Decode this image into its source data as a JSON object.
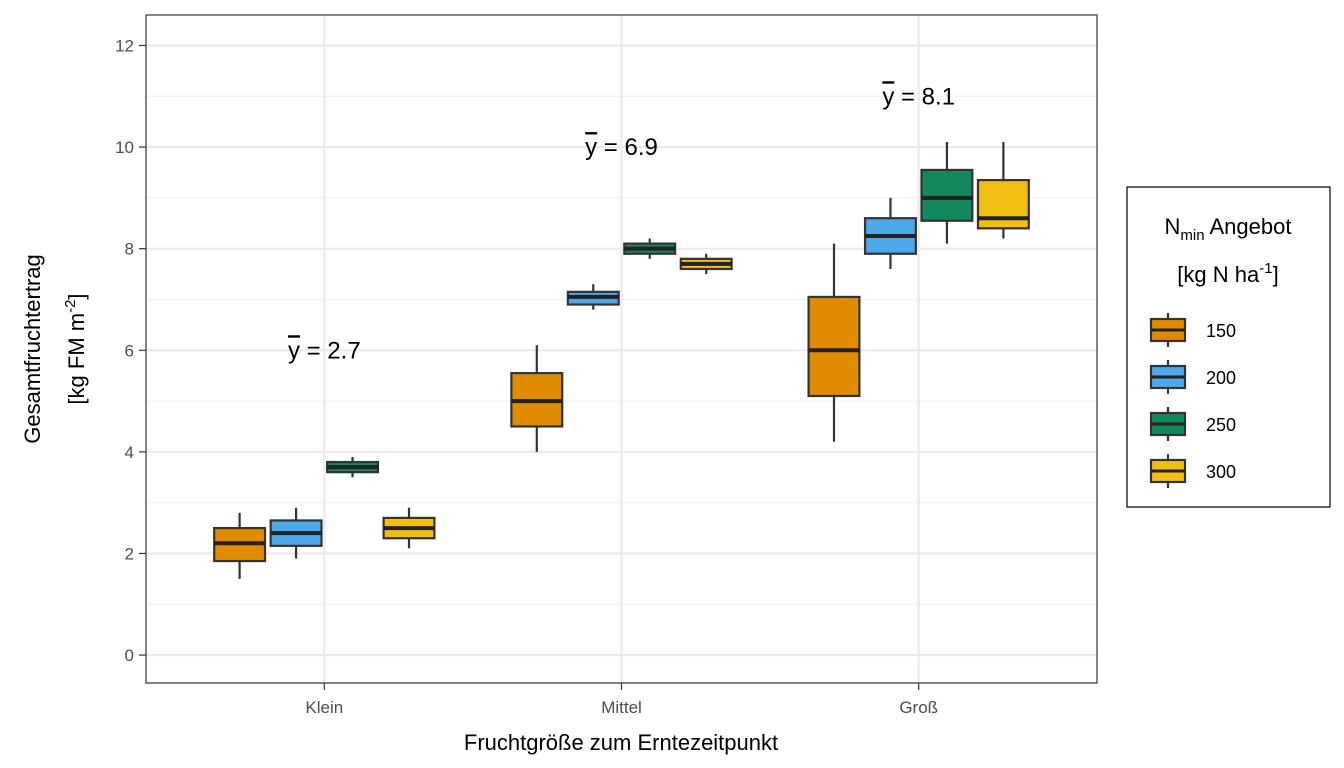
{
  "chart_data": {
    "type": "box",
    "xlabel": "Fruchtgröße zum Erntezeitpunkt",
    "ylabel_line1": "Gesamtfruchtertrag",
    "ylabel_line2_main": "[kg FM m",
    "ylabel_line2_sup": "-2",
    "ylabel_line2_end": "]",
    "ylim": [
      -0.55,
      12.6
    ],
    "yticks": [
      0,
      2,
      4,
      6,
      8,
      10,
      12
    ],
    "ytick_labels": [
      "0",
      "2",
      "4",
      "6",
      "8",
      "10",
      "12"
    ],
    "grid": true,
    "categories": [
      "Klein",
      "Mittel",
      "Groß"
    ],
    "legend": {
      "position": "right",
      "title_main": "N",
      "title_sub": "min",
      "title_rest": " Angebot",
      "title_line2_main": "[kg N ha",
      "title_line2_sup": "-1",
      "title_line2_end": "]"
    },
    "series": [
      {
        "name": "150",
        "color": "#E08B00",
        "boxes": [
          {
            "min": 1.5,
            "q1": 1.85,
            "median": 2.2,
            "q3": 2.5,
            "max": 2.8
          },
          {
            "min": 4.0,
            "q1": 4.5,
            "median": 5.0,
            "q3": 5.55,
            "max": 6.1
          },
          {
            "min": 4.2,
            "q1": 5.1,
            "median": 6.0,
            "q3": 7.05,
            "max": 8.1
          }
        ]
      },
      {
        "name": "200",
        "color": "#4DA8EA",
        "boxes": [
          {
            "min": 1.9,
            "q1": 2.15,
            "median": 2.4,
            "q3": 2.65,
            "max": 2.9
          },
          {
            "min": 6.8,
            "q1": 6.9,
            "median": 7.05,
            "q3": 7.15,
            "max": 7.3
          },
          {
            "min": 7.6,
            "q1": 7.9,
            "median": 8.25,
            "q3": 8.6,
            "max": 9.0
          }
        ]
      },
      {
        "name": "250",
        "color": "#13885C",
        "boxes": [
          {
            "min": 3.5,
            "q1": 3.6,
            "median": 3.7,
            "q3": 3.8,
            "max": 3.9
          },
          {
            "min": 7.8,
            "q1": 7.9,
            "median": 8.0,
            "q3": 8.1,
            "max": 8.2
          },
          {
            "min": 8.1,
            "q1": 8.55,
            "median": 9.0,
            "q3": 9.55,
            "max": 10.1
          }
        ]
      },
      {
        "name": "300",
        "color": "#F2BE14",
        "boxes": [
          {
            "min": 2.1,
            "q1": 2.3,
            "median": 2.5,
            "q3": 2.7,
            "max": 2.9
          },
          {
            "min": 7.5,
            "q1": 7.6,
            "median": 7.7,
            "q3": 7.8,
            "max": 7.9
          },
          {
            "min": 8.2,
            "q1": 8.4,
            "median": 8.6,
            "q3": 9.35,
            "max": 10.1
          }
        ]
      }
    ],
    "annotations": [
      {
        "category": "Klein",
        "symbol": "y",
        "text": " = 2.7",
        "y": 6.0
      },
      {
        "category": "Mittel",
        "symbol": "y",
        "text": " = 6.9",
        "y": 10.0
      },
      {
        "category": "Groß",
        "symbol": "y",
        "text": " = 8.1",
        "y": 11.0
      }
    ]
  }
}
